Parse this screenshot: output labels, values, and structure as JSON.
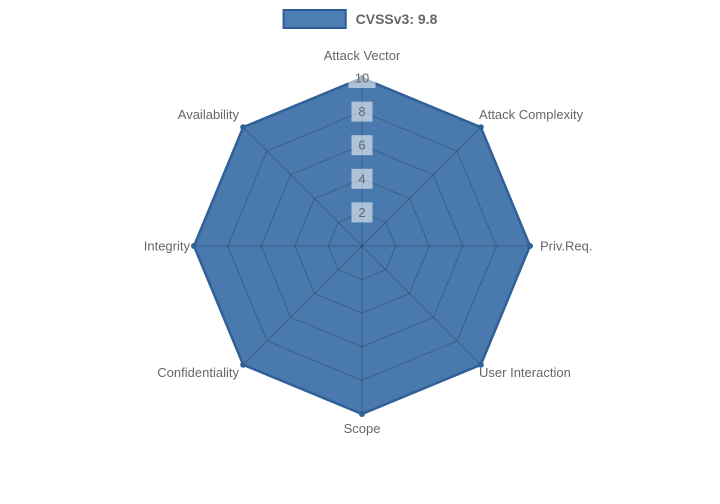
{
  "legend": {
    "label": "CVSSv3: 9.8"
  },
  "colors": {
    "background": "#ffffff",
    "fill": "#4a7aad",
    "stroke": "#2f6096",
    "legend_swatch_fill": "#4d7eb3",
    "legend_swatch_border": "#2c5d92",
    "grid": "rgba(0,0,0,0.22)",
    "tick_text": "#666666",
    "tick_backdrop": "rgba(255,255,255,0.55)",
    "axis_label": "#666666"
  },
  "chart_data": {
    "type": "radar",
    "categories": [
      "Attack Vector",
      "Attack Complexity",
      "Priv.Req.",
      "User Interaction",
      "Scope",
      "Confidentiality",
      "Integrity",
      "Availability"
    ],
    "series": [
      {
        "name": "CVSSv3: 9.8",
        "values": [
          10,
          10,
          10,
          10,
          10,
          10,
          10,
          10
        ]
      }
    ],
    "rmin": 0,
    "rmax": 10,
    "ticks": [
      2,
      4,
      6,
      8,
      10
    ],
    "grid": true,
    "legend_position": "top",
    "title": ""
  }
}
